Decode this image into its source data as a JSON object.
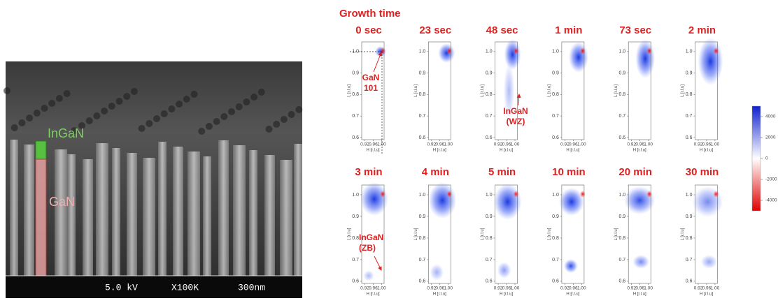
{
  "sem_image": {
    "labels": {
      "ingan": "InGaN",
      "gan": "GaN"
    },
    "info": [
      "5.0 kV",
      "X100K",
      "300nm"
    ]
  },
  "figure": {
    "title": "Growth time",
    "panels": [
      {
        "title": "0 sec"
      },
      {
        "title": "23 sec"
      },
      {
        "title": "48 sec"
      },
      {
        "title": "1 min"
      },
      {
        "title": "73 sec"
      },
      {
        "title": "2 min"
      },
      {
        "title": "3 min"
      },
      {
        "title": "4 min"
      },
      {
        "title": "5 min"
      },
      {
        "title": "10 min"
      },
      {
        "title": "20 min"
      },
      {
        "title": "30 min"
      }
    ],
    "axes": {
      "xlabel": "H [r.l.u]",
      "ylabel": "L [r.l.u]",
      "xlim": [
        0.905,
        1.012
      ],
      "ylim": [
        0.59,
        1.045
      ],
      "xticks": [
        0.92,
        0.96,
        {
          "value": 1,
          "label": "1.00"
        }
      ],
      "yticks": [
        0.6,
        0.7,
        0.8,
        0.9,
        {
          "value": 1,
          "label": "1.0"
        }
      ]
    },
    "annotations": [
      {
        "panel": 0,
        "lines": [
          "GaN",
          "101"
        ]
      },
      {
        "panel": 2,
        "lines": [
          "InGaN",
          "(WZ)"
        ]
      },
      {
        "panel": 6,
        "lines": [
          "InGaN",
          "(ZB)"
        ]
      }
    ],
    "colorbar": {
      "lim": [
        -5000,
        5000
      ],
      "ticks": [
        4000,
        2000,
        0,
        -2000,
        -4000
      ]
    }
  }
}
